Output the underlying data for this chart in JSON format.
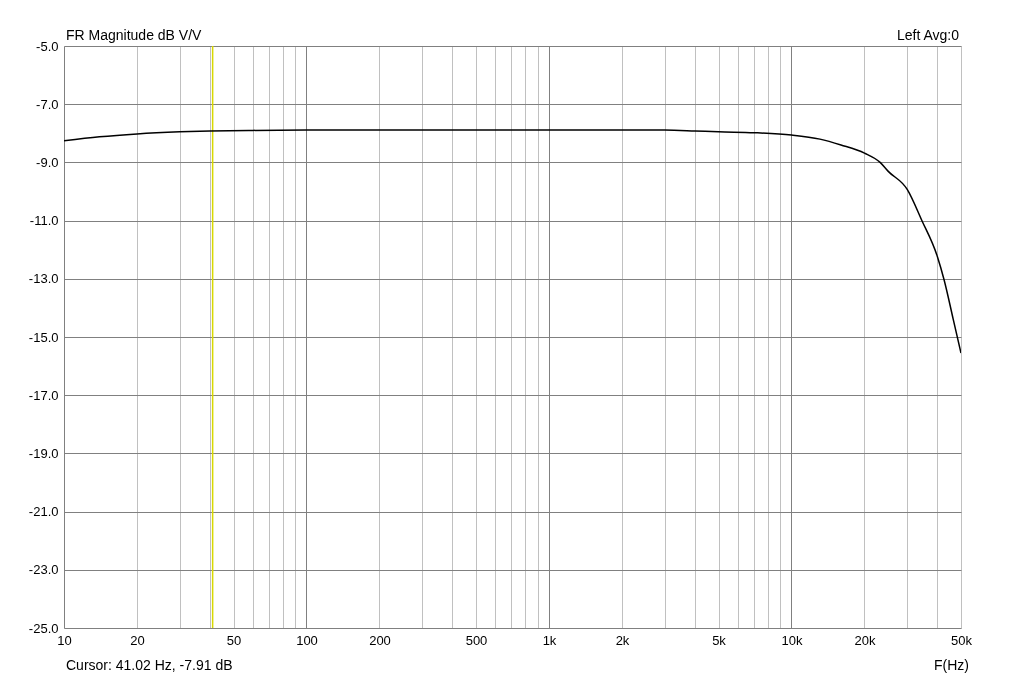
{
  "chart_data": {
    "type": "line",
    "title": "FR Magnitude dB V/V",
    "xlabel": "F(Hz)",
    "log": "x",
    "grid": true,
    "marker": "none",
    "line_style": "solid",
    "annotations": [
      "Left  Avg:0",
      "Cursor: 41.02 Hz, -7.91 dB"
    ],
    "xlim": [
      10,
      50000
    ],
    "ylim": [
      -25,
      -5
    ],
    "xticks": [
      10,
      20,
      {
        "value": 30,
        "label": null
      },
      {
        "value": 40,
        "label": null
      },
      50,
      {
        "value": 60,
        "label": null
      },
      {
        "value": 70,
        "label": null
      },
      {
        "value": 80,
        "label": null
      },
      {
        "value": 90,
        "label": null
      },
      100,
      200,
      {
        "value": 300,
        "label": null
      },
      {
        "value": 400,
        "label": null
      },
      500,
      {
        "value": 600,
        "label": null
      },
      {
        "value": 700,
        "label": null
      },
      {
        "value": 800,
        "label": null
      },
      {
        "value": 900,
        "label": null
      },
      {
        "value": 1000,
        "label": "1k"
      },
      {
        "value": 2000,
        "label": "2k"
      },
      {
        "value": 3000,
        "label": null
      },
      {
        "value": 4000,
        "label": null
      },
      {
        "value": 5000,
        "label": "5k"
      },
      {
        "value": 6000,
        "label": null
      },
      {
        "value": 7000,
        "label": null
      },
      {
        "value": 8000,
        "label": null
      },
      {
        "value": 9000,
        "label": null
      },
      {
        "value": 10000,
        "label": "10k"
      },
      {
        "value": 20000,
        "label": "20k"
      },
      {
        "value": 30000,
        "label": null
      },
      {
        "value": 40000,
        "label": null
      },
      {
        "value": 50000,
        "label": "50k"
      }
    ],
    "yticks": [
      {
        "value": -25,
        "label": "-25.0"
      },
      {
        "value": -23,
        "label": "-23.0"
      },
      {
        "value": -21,
        "label": "-21.0"
      },
      {
        "value": -19,
        "label": "-19.0"
      },
      {
        "value": -17,
        "label": "-17.0"
      },
      {
        "value": -15,
        "label": "-15.0"
      },
      {
        "value": -13,
        "label": "-13.0"
      },
      {
        "value": -11,
        "label": "-11.0"
      },
      {
        "value": -9,
        "label": "-9.0"
      },
      {
        "value": -7,
        "label": "-7.0"
      },
      {
        "value": -5,
        "label": "-5.0"
      }
    ],
    "ref_lines": [
      {
        "axis": "x",
        "value": 41.02,
        "label": null,
        "color": "#d8d800"
      }
    ],
    "x": [
      10,
      14,
      20,
      30,
      40,
      60,
      100,
      300,
      1000,
      3000,
      4000,
      5000,
      7000,
      10000,
      13100,
      16000,
      20000,
      23200,
      25000,
      30000,
      34400,
      40000,
      42600,
      46500,
      50000
    ],
    "series": [
      {
        "color": "#000000",
        "values": [
          -8.26,
          -8.12,
          -8.02,
          -7.95,
          -7.92,
          -7.9,
          -7.89,
          -7.89,
          -7.89,
          -7.89,
          -7.92,
          -7.95,
          -7.98,
          -8.06,
          -8.2,
          -8.4,
          -8.68,
          -9.0,
          -9.3,
          -9.93,
          -10.98,
          -12.25,
          -13.04,
          -14.41,
          -15.55
        ]
      }
    ]
  }
}
